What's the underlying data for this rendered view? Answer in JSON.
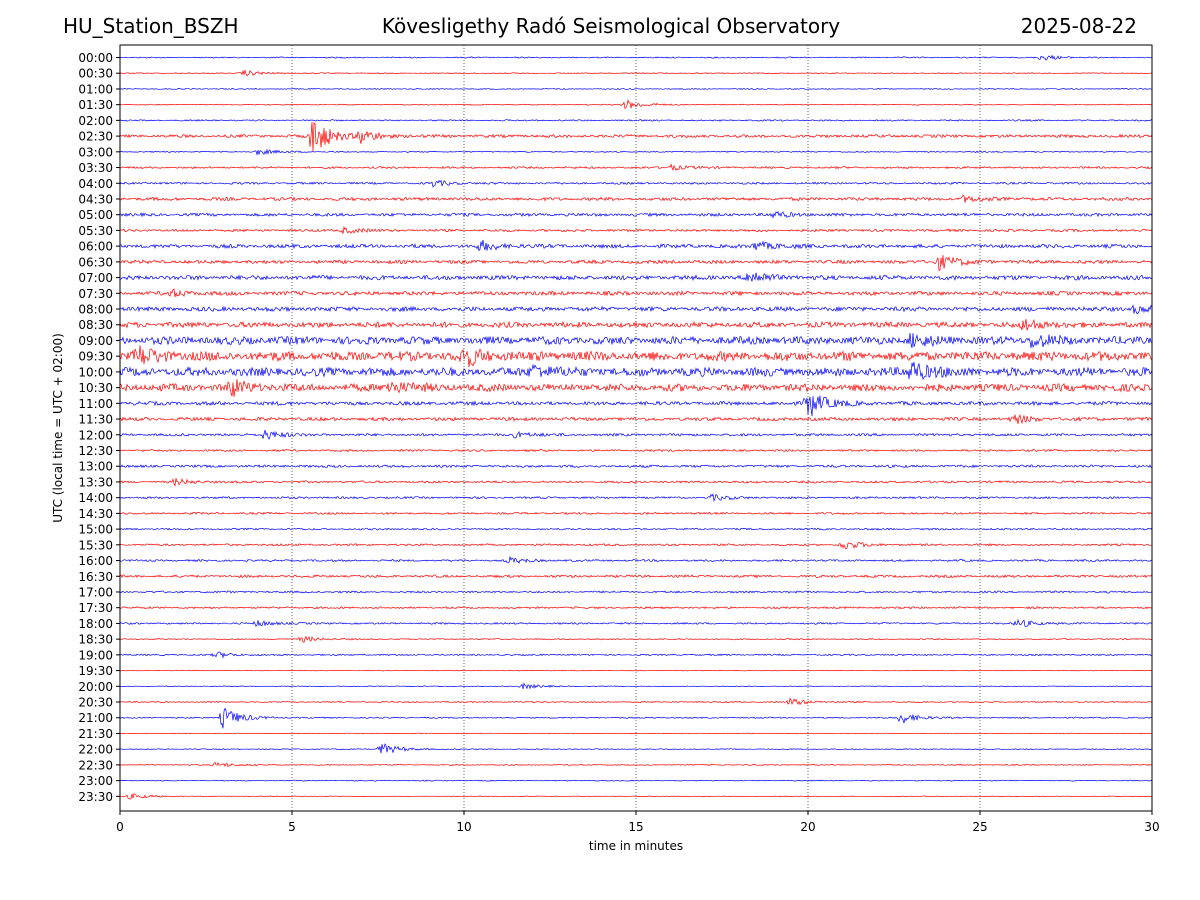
{
  "header": {
    "station": "HU_Station_BSZH",
    "title": "Kövesligethy Radó Seismological Observatory",
    "date": "2025-08-22"
  },
  "chart_data": {
    "type": "line",
    "title": "Kövesligethy Radó Seismological Observatory",
    "xlabel": "time in minutes",
    "ylabel": "UTC (local time = UTC + 02:00)",
    "xlim": [
      0,
      30
    ],
    "x_ticks": [
      0,
      5,
      10,
      15,
      20,
      25,
      30
    ],
    "grid": "vertical dotted lines at 5-minute intervals",
    "colors": [
      "#0000ff",
      "#ff0000"
    ],
    "rows": [
      {
        "label": "00:00",
        "level": 0.5,
        "bursts": [
          {
            "t": 26.8,
            "a": 3
          }
        ]
      },
      {
        "label": "00:30",
        "level": 0.4,
        "bursts": [
          {
            "t": 3.6,
            "a": 3
          }
        ]
      },
      {
        "label": "01:00",
        "level": 0.4,
        "bursts": []
      },
      {
        "label": "01:30",
        "level": 0.4,
        "bursts": [
          {
            "t": 14.7,
            "a": 5
          }
        ]
      },
      {
        "label": "02:00",
        "level": 0.6,
        "bursts": []
      },
      {
        "label": "02:30",
        "level": 1.2,
        "bursts": [
          {
            "t": 5.6,
            "a": 20
          },
          {
            "t": 7.0,
            "a": 6
          }
        ]
      },
      {
        "label": "03:00",
        "level": 0.5,
        "bursts": [
          {
            "t": 4.0,
            "a": 3
          }
        ]
      },
      {
        "label": "03:30",
        "level": 0.8,
        "bursts": [
          {
            "t": 16.0,
            "a": 3
          }
        ]
      },
      {
        "label": "04:00",
        "level": 0.8,
        "bursts": [
          {
            "t": 9.1,
            "a": 3
          }
        ]
      },
      {
        "label": "04:30",
        "level": 1.3,
        "bursts": [
          {
            "t": 24.5,
            "a": 3
          }
        ]
      },
      {
        "label": "05:00",
        "level": 1.2,
        "bursts": [
          {
            "t": 19.0,
            "a": 3
          }
        ]
      },
      {
        "label": "05:30",
        "level": 1.0,
        "bursts": [
          {
            "t": 6.5,
            "a": 3
          }
        ]
      },
      {
        "label": "06:00",
        "level": 1.5,
        "bursts": [
          {
            "t": 10.5,
            "a": 5
          },
          {
            "t": 18.5,
            "a": 5
          }
        ]
      },
      {
        "label": "06:30",
        "level": 1.4,
        "bursts": [
          {
            "t": 23.8,
            "a": 8
          }
        ]
      },
      {
        "label": "07:00",
        "level": 1.8,
        "bursts": [
          {
            "t": 18.3,
            "a": 7
          }
        ]
      },
      {
        "label": "07:30",
        "level": 1.6,
        "bursts": [
          {
            "t": 1.5,
            "a": 3
          }
        ]
      },
      {
        "label": "08:00",
        "level": 1.8,
        "bursts": [
          {
            "t": 29.5,
            "a": 4
          }
        ]
      },
      {
        "label": "08:30",
        "level": 2.2,
        "bursts": [
          {
            "t": 26.3,
            "a": 6
          }
        ]
      },
      {
        "label": "09:00",
        "level": 3.2,
        "bursts": [
          {
            "t": 23.0,
            "a": 6
          },
          {
            "t": 26.5,
            "a": 7
          }
        ]
      },
      {
        "label": "09:30",
        "level": 3.8,
        "bursts": [
          {
            "t": 0.5,
            "a": 9
          },
          {
            "t": 10.0,
            "a": 9
          }
        ]
      },
      {
        "label": "10:00",
        "level": 3.5,
        "bursts": [
          {
            "t": 12.0,
            "a": 7
          },
          {
            "t": 23.0,
            "a": 11
          }
        ]
      },
      {
        "label": "10:30",
        "level": 3.0,
        "bursts": [
          {
            "t": 3.2,
            "a": 8
          },
          {
            "t": 7.8,
            "a": 7
          }
        ]
      },
      {
        "label": "11:00",
        "level": 1.5,
        "bursts": [
          {
            "t": 20.0,
            "a": 15
          }
        ]
      },
      {
        "label": "11:30",
        "level": 1.4,
        "bursts": [
          {
            "t": 26.0,
            "a": 4
          }
        ]
      },
      {
        "label": "12:00",
        "level": 1.0,
        "bursts": [
          {
            "t": 4.2,
            "a": 5
          },
          {
            "t": 11.5,
            "a": 3
          }
        ]
      },
      {
        "label": "12:30",
        "level": 0.8,
        "bursts": []
      },
      {
        "label": "13:00",
        "level": 1.0,
        "bursts": []
      },
      {
        "label": "13:30",
        "level": 0.9,
        "bursts": [
          {
            "t": 1.6,
            "a": 3
          }
        ]
      },
      {
        "label": "14:00",
        "level": 0.8,
        "bursts": [
          {
            "t": 17.2,
            "a": 3
          }
        ]
      },
      {
        "label": "14:30",
        "level": 0.8,
        "bursts": []
      },
      {
        "label": "15:00",
        "level": 0.7,
        "bursts": []
      },
      {
        "label": "15:30",
        "level": 0.8,
        "bursts": [
          {
            "t": 21.0,
            "a": 5
          }
        ]
      },
      {
        "label": "16:00",
        "level": 0.8,
        "bursts": [
          {
            "t": 11.3,
            "a": 3
          }
        ]
      },
      {
        "label": "16:30",
        "level": 1.0,
        "bursts": []
      },
      {
        "label": "17:00",
        "level": 0.8,
        "bursts": []
      },
      {
        "label": "17:30",
        "level": 0.8,
        "bursts": []
      },
      {
        "label": "18:00",
        "level": 0.7,
        "bursts": [
          {
            "t": 4.0,
            "a": 3
          },
          {
            "t": 26.1,
            "a": 4
          }
        ]
      },
      {
        "label": "18:30",
        "level": 0.5,
        "bursts": [
          {
            "t": 5.3,
            "a": 3
          }
        ]
      },
      {
        "label": "19:00",
        "level": 0.6,
        "bursts": [
          {
            "t": 2.8,
            "a": 3
          }
        ]
      },
      {
        "label": "19:30",
        "level": 0.3,
        "bursts": []
      },
      {
        "label": "20:00",
        "level": 0.3,
        "bursts": [
          {
            "t": 11.7,
            "a": 3
          }
        ]
      },
      {
        "label": "20:30",
        "level": 0.5,
        "bursts": [
          {
            "t": 19.5,
            "a": 4
          }
        ]
      },
      {
        "label": "21:00",
        "level": 0.5,
        "bursts": [
          {
            "t": 3.0,
            "a": 11
          },
          {
            "t": 22.7,
            "a": 6
          }
        ]
      },
      {
        "label": "21:30",
        "level": 0.3,
        "bursts": []
      },
      {
        "label": "22:00",
        "level": 0.4,
        "bursts": [
          {
            "t": 7.6,
            "a": 6
          }
        ]
      },
      {
        "label": "22:30",
        "level": 0.4,
        "bursts": [
          {
            "t": 2.8,
            "a": 3
          }
        ]
      },
      {
        "label": "23:00",
        "level": 0.4,
        "bursts": []
      },
      {
        "label": "23:30",
        "level": 0.3,
        "bursts": [
          {
            "t": 0.3,
            "a": 3
          }
        ]
      }
    ]
  }
}
